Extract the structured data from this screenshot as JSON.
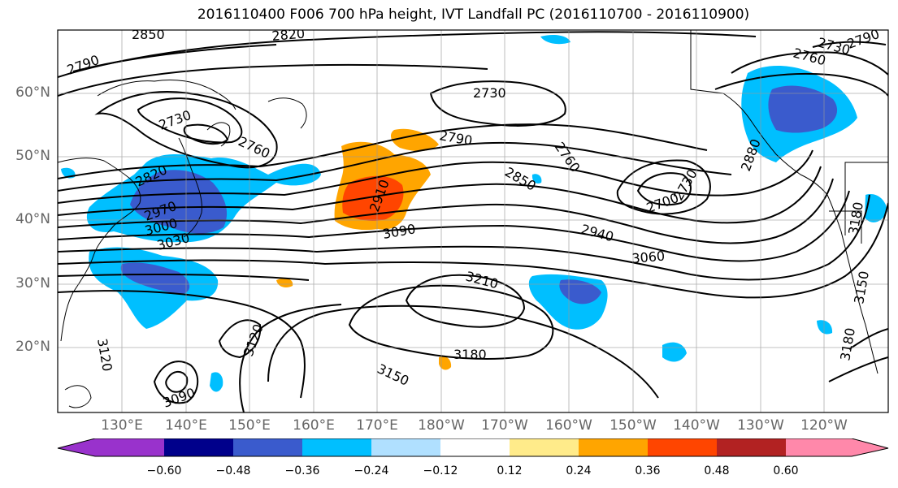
{
  "title": "2016110400 F006 700 hPa height, IVT Landfall PC (2016110700 - 2016110900)",
  "lat_labels": [
    "60°N",
    "50°N",
    "40°N",
    "30°N",
    "20°N"
  ],
  "lon_labels": [
    "130°E",
    "140°E",
    "150°E",
    "160°E",
    "170°E",
    "180°W",
    "170°W",
    "160°W",
    "150°W",
    "140°W",
    "130°W",
    "120°W"
  ],
  "contour_labels": [
    "2850",
    "2820",
    "2790",
    "2730",
    "2760",
    "2730",
    "2790",
    "2820",
    "2970",
    "3000",
    "3030",
    "2910",
    "3090",
    "2850",
    "2760",
    "2940",
    "3060",
    "2700",
    "2730",
    "2880",
    "2790",
    "2760",
    "2730",
    "3180",
    "3150",
    "3210",
    "3180",
    "3150",
    "3120",
    "3090",
    "3120",
    "3180"
  ],
  "colorbar": {
    "labels": [
      "−0.60",
      "−0.48",
      "−0.36",
      "−0.24",
      "−0.12",
      "0.12",
      "0.24",
      "0.36",
      "0.48",
      "0.60"
    ],
    "colors": [
      "#9932cc",
      "#00008b",
      "#3a5bcd",
      "#00bfff",
      "#b0e0ff",
      "#ffffff",
      "#ffeb8a",
      "#ffa500",
      "#ff4500",
      "#b22222",
      "#ff88aa"
    ]
  }
}
